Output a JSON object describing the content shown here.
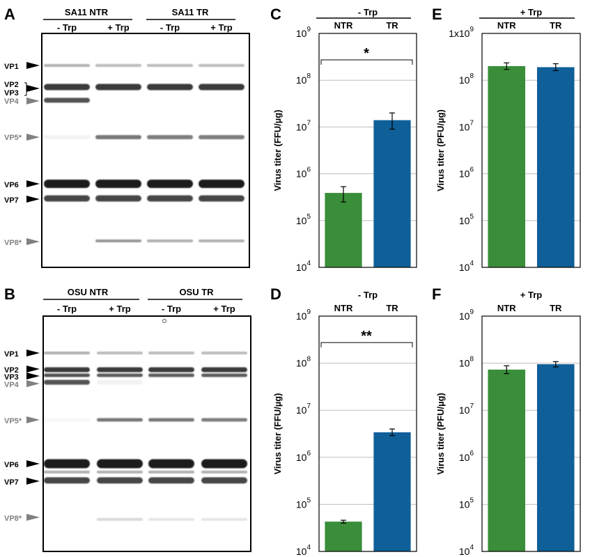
{
  "panel_letters": [
    "A",
    "B",
    "C",
    "D",
    "E",
    "F"
  ],
  "gels": [
    {
      "groups": [
        "SA11 NTR",
        "SA11 TR"
      ],
      "lanes": [
        "- Trp",
        "+ Trp",
        "- Trp",
        "+ Trp"
      ],
      "bands": [
        "VP1",
        "VP2",
        "VP3",
        "VP4",
        "VP5*",
        "VP6",
        "VP7",
        "VP8*"
      ]
    },
    {
      "groups": [
        "OSU NTR",
        "OSU TR"
      ],
      "lanes": [
        "- Trp",
        "+ Trp",
        "- Trp",
        "+ Trp"
      ],
      "bands": [
        "VP1",
        "VP2",
        "VP3",
        "VP4",
        "VP5*",
        "VP6",
        "VP7",
        "VP8*"
      ]
    }
  ],
  "colors": {
    "ntr": "#3a8e3a",
    "tr": "#0f5f98",
    "grey_label": "#808080"
  },
  "chart_data": [
    {
      "panel": "C",
      "type": "bar",
      "title": "- Trp",
      "categories": [
        "NTR",
        "TR"
      ],
      "values": [
        390000,
        14000000
      ],
      "error": [
        [
          250000,
          530000
        ],
        [
          9000000,
          20000000
        ]
      ],
      "ylabel": "Virus titer (FFU/µg)",
      "yscale": "log",
      "ylim": [
        10000,
        1000000000
      ],
      "yticks": [
        "10",
        "10",
        "10",
        "10",
        "10",
        "10"
      ],
      "yexp": [
        "4",
        "5",
        "6",
        "7",
        "8",
        "9"
      ],
      "significance": "*",
      "grid": true
    },
    {
      "panel": "D",
      "type": "bar",
      "title": "- Trp",
      "categories": [
        "NTR",
        "TR"
      ],
      "values": [
        43000,
        3400000
      ],
      "error": [
        [
          40000,
          46000
        ],
        [
          2900000,
          4000000
        ]
      ],
      "ylabel": "Virus titer (FFU/µg)",
      "yscale": "log",
      "ylim": [
        10000,
        1000000000
      ],
      "yticks": [
        "10",
        "10",
        "10",
        "10",
        "10",
        "10"
      ],
      "yexp": [
        "4",
        "5",
        "6",
        "7",
        "8",
        "9"
      ],
      "significance": "**",
      "grid": true
    },
    {
      "panel": "E",
      "type": "bar",
      "title": "+ Trp",
      "categories": [
        "NTR",
        "TR"
      ],
      "values": [
        200000000,
        190000000
      ],
      "error": [
        [
          170000000,
          235000000
        ],
        [
          160000000,
          225000000
        ]
      ],
      "ylabel": "Virus titer (PFU/µg)",
      "yscale": "log",
      "ylim": [
        10000,
        1000000000
      ],
      "yticks": [
        "10",
        "10",
        "10",
        "10",
        "10",
        "1x10"
      ],
      "yexp": [
        "4",
        "5",
        "6",
        "7",
        "8",
        "9"
      ],
      "significance": "",
      "grid": true
    },
    {
      "panel": "F",
      "type": "bar",
      "title": "+ Trp",
      "categories": [
        "NTR",
        "TR"
      ],
      "values": [
        73000000,
        95000000
      ],
      "error": [
        [
          60000000,
          88000000
        ],
        [
          83000000,
          108000000
        ]
      ],
      "ylabel": "Virus titer (PFU/µg)",
      "yscale": "log",
      "ylim": [
        10000,
        1000000000
      ],
      "yticks": [
        "10",
        "10",
        "10",
        "10",
        "10",
        "10"
      ],
      "yexp": [
        "4",
        "5",
        "6",
        "7",
        "8",
        "9"
      ],
      "significance": "",
      "grid": true
    }
  ]
}
